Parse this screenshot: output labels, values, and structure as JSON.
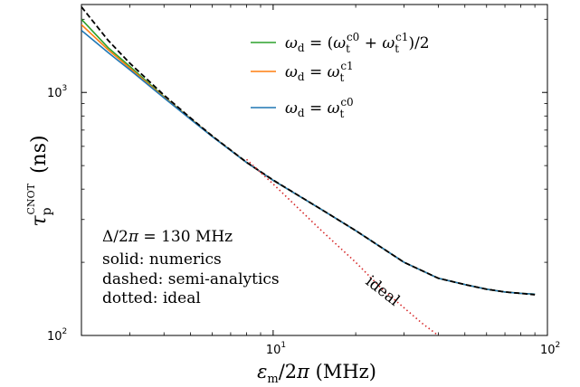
{
  "chart_data": {
    "type": "line",
    "xscale": "log",
    "yscale": "log",
    "xlim": [
      2,
      100
    ],
    "ylim": [
      100,
      2300
    ],
    "xlabel": "εm/2π (MHz)",
    "ylabel": "τp^CNOT (ns)",
    "x_ticks": [
      {
        "value": 10,
        "label": "10",
        "exp": "1"
      },
      {
        "value": 100,
        "label": "10",
        "exp": "2"
      }
    ],
    "y_ticks": [
      {
        "value": 100,
        "label": "10",
        "exp": "2"
      },
      {
        "value": 1000,
        "label": "10",
        "exp": "3"
      }
    ],
    "legend": {
      "position": "top-right",
      "entries": [
        {
          "series": "green",
          "label": "ωd = (ωt^c0 + ωt^c1)/2"
        },
        {
          "series": "orange",
          "label": "ωd = ωt^c1"
        },
        {
          "series": "blue",
          "label": "ωd = ωt^c0"
        }
      ]
    },
    "annotations": {
      "delta": "Δ/2π = 130 MHz",
      "solid": "solid: numerics",
      "dashed": "dashed: semi-analytics",
      "dotted": "dotted: ideal",
      "ideal_label": "ideal"
    },
    "series": [
      {
        "key": "green",
        "style": "solid",
        "color": "#2ca02c",
        "x": [
          2,
          2.5,
          3,
          4,
          5,
          6,
          8,
          10,
          15,
          20,
          30,
          40,
          50,
          60,
          70,
          80,
          90
        ],
        "y": [
          2000,
          1530,
          1280,
          960,
          780,
          660,
          515,
          435,
          330,
          270,
          200,
          172,
          162,
          155,
          151,
          149,
          148
        ]
      },
      {
        "key": "orange",
        "style": "solid",
        "color": "#ff7f0e",
        "x": [
          2,
          2.5,
          3,
          4,
          5,
          6,
          8,
          10,
          15,
          20,
          30,
          40,
          50,
          60,
          70,
          80,
          90
        ],
        "y": [
          1900,
          1500,
          1260,
          955,
          778,
          660,
          515,
          435,
          330,
          270,
          200,
          172,
          162,
          155,
          151,
          149,
          148
        ]
      },
      {
        "key": "blue",
        "style": "solid",
        "color": "#1f77b4",
        "x": [
          2,
          2.5,
          3,
          4,
          5,
          6,
          8,
          10,
          15,
          20,
          30,
          40,
          50,
          60,
          70,
          80,
          90
        ],
        "y": [
          1800,
          1460,
          1240,
          950,
          775,
          658,
          515,
          435,
          330,
          270,
          200,
          172,
          162,
          155,
          151,
          149,
          148
        ]
      },
      {
        "key": "dashed",
        "style": "dashed",
        "color": "#000000",
        "x": [
          2,
          2.5,
          3,
          4,
          5,
          6,
          8,
          10,
          15,
          20,
          30,
          40,
          50,
          60,
          70,
          80,
          90
        ],
        "y": [
          2250,
          1640,
          1320,
          975,
          785,
          662,
          516,
          436,
          330,
          270,
          200,
          172,
          162,
          155,
          151,
          149,
          147
        ]
      },
      {
        "key": "ideal",
        "style": "dotted",
        "color": "#d62728",
        "x": [
          8,
          10,
          15,
          20,
          25,
          30,
          35,
          40,
          44
        ],
        "y": [
          530,
          420,
          270,
          200,
          155,
          130,
          112,
          100,
          90
        ]
      }
    ]
  }
}
